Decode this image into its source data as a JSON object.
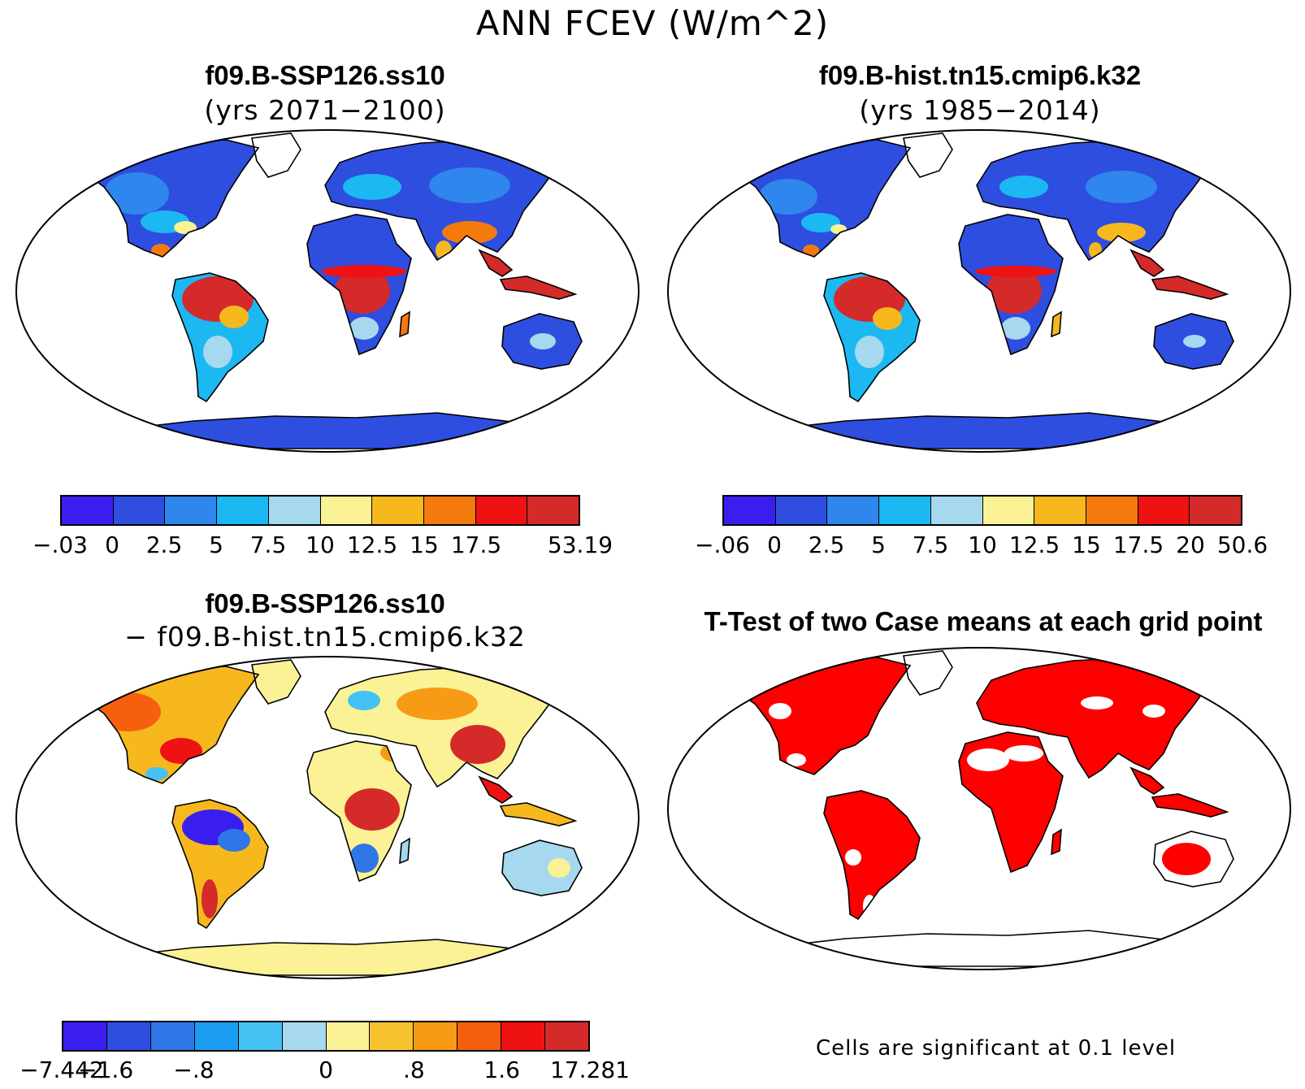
{
  "title": "ANN FCEV (W/m^2)",
  "panels": [
    {
      "title": "f09.B-SSP126.ss10",
      "subtitle": "(yrs 2071−2100)",
      "colorbar": {
        "colors": [
          "#3a1ef0",
          "#2e4ee0",
          "#2f86ec",
          "#1bb8f2",
          "#a6d8f0",
          "#faf294",
          "#f7b81e",
          "#f57a0e",
          "#ee1212",
          "#d42a2a"
        ],
        "labels": [
          "−.03",
          "0",
          "2.5",
          "5",
          "7.5",
          "10",
          "12.5",
          "15",
          "17.5",
          "",
          "53.19"
        ]
      }
    },
    {
      "title": "f09.B-hist.tn15.cmip6.k32",
      "subtitle": "(yrs 1985−2014)",
      "colorbar": {
        "colors": [
          "#3a1ef0",
          "#2e4ee0",
          "#2f86ec",
          "#1bb8f2",
          "#a6d8f0",
          "#faf294",
          "#f7b81e",
          "#f57a0e",
          "#ee1212",
          "#d42a2a"
        ],
        "labels": [
          "−.06",
          "0",
          "2.5",
          "5",
          "7.5",
          "10",
          "12.5",
          "15",
          "17.5",
          "20",
          "50.6"
        ]
      }
    },
    {
      "title": "f09.B-SSP126.ss10",
      "subtitle": "− f09.B-hist.tn15.cmip6.k32",
      "colorbar": {
        "colors": [
          "#3a1ef0",
          "#2e4ee0",
          "#2f76e6",
          "#1a9cf0",
          "#44c2f4",
          "#a6d8f0",
          "#faf294",
          "#f7c430",
          "#f79a16",
          "#f5600e",
          "#ee1212",
          "#d42a2a"
        ],
        "labels": [
          "−7.442",
          "−1.6",
          "",
          "−.8",
          "",
          "",
          "0",
          "",
          ".8",
          "",
          "1.6",
          "",
          "17.281"
        ]
      }
    },
    {
      "title": "T-Test of two Case means at each grid point",
      "note": "Cells are significant at 0.1 level"
    }
  ],
  "colors": {
    "ocean": "#ffffff",
    "outline": "#000000",
    "significant": "#ff0000"
  }
}
